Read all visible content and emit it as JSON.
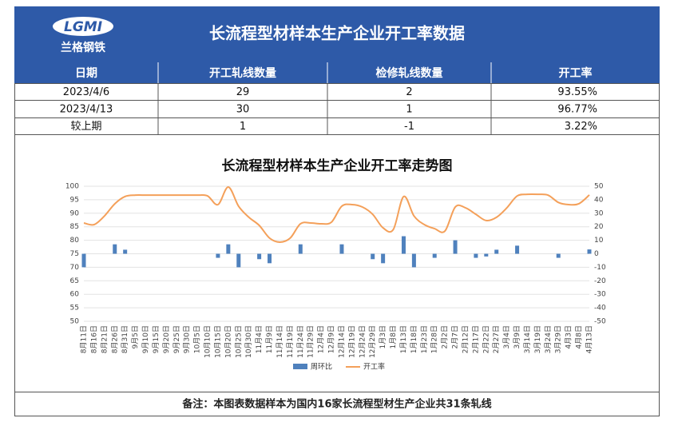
{
  "header": {
    "logo_text": "LGMI",
    "logo_subtext": "兰格钢铁",
    "title": "长流程型材样本生产企业开工率数据"
  },
  "table": {
    "columns": [
      "日期",
      "开工轧线数量",
      "检修轧线数量",
      "开工率"
    ],
    "rows": [
      [
        "2023/4/6",
        "29",
        "2",
        "93.55%"
      ],
      [
        "2023/4/13",
        "30",
        "1",
        "96.77%"
      ],
      [
        "较上期",
        "1",
        "-1",
        "3.22%"
      ]
    ]
  },
  "chart_data": {
    "type": "bar-line",
    "title": "长流程型材样本生产企业开工率走势图",
    "categories": [
      "8月11日",
      "8月16日",
      "8月21日",
      "8月26日",
      "8月31日",
      "9月5日",
      "9月10日",
      "9月15日",
      "9月20日",
      "9月25日",
      "9月30日",
      "10月5日",
      "10月10日",
      "10月15日",
      "10月20日",
      "10月25日",
      "10月30日",
      "11月4日",
      "11月9日",
      "11月14日",
      "11月19日",
      "11月24日",
      "11月29日",
      "12月4日",
      "12月9日",
      "12月14日",
      "12月19日",
      "12月24日",
      "12月29日",
      "1月3日",
      "1月8日",
      "1月13日",
      "1月18日",
      "1月23日",
      "1月28日",
      "2月2日",
      "2月7日",
      "2月12日",
      "2月17日",
      "2月22日",
      "2月27日",
      "3月4日",
      "3月9日",
      "3月14日",
      "3月19日",
      "3月24日",
      "3月29日",
      "4月3日",
      "4月8日",
      "4月13日"
    ],
    "series": [
      {
        "name": "周环比",
        "type": "bar",
        "axis": "y2",
        "color": "#4f81bd",
        "values": [
          -10,
          null,
          null,
          7,
          3,
          null,
          null,
          null,
          null,
          null,
          null,
          null,
          null,
          -3,
          7,
          -10,
          null,
          -4,
          -7,
          null,
          null,
          7,
          null,
          null,
          null,
          7,
          null,
          null,
          -4,
          -7,
          null,
          13,
          -10,
          null,
          -3,
          null,
          10,
          null,
          -3,
          -2,
          3,
          null,
          6,
          null,
          null,
          null,
          -3,
          null,
          null,
          3.22
        ]
      },
      {
        "name": "开工率",
        "type": "line",
        "color": "#f4a05a",
        "values": [
          86.4,
          85.8,
          89,
          93.5,
          96.2,
          96.7,
          96.7,
          96.7,
          96.7,
          96.7,
          96.7,
          96.7,
          96.4,
          93.2,
          99.7,
          92.6,
          88.5,
          85.5,
          80.8,
          79.3,
          80.8,
          86.1,
          86.4,
          86.1,
          86.7,
          92.6,
          93.2,
          92.3,
          89.6,
          84.6,
          84,
          96.2,
          89,
          85.8,
          84.3,
          83.4,
          92.3,
          92,
          89.6,
          87.3,
          88.5,
          92,
          96.4,
          97,
          97,
          96.7,
          94,
          93.2,
          93.55,
          96.77
        ]
      }
    ],
    "ylim": [
      50,
      100
    ],
    "yticks": [
      50,
      55,
      60,
      65,
      70,
      75,
      80,
      85,
      90,
      95,
      100
    ],
    "y2lim": [
      -50,
      50
    ],
    "y2ticks": [
      -50,
      -40,
      -30,
      -20,
      -10,
      0,
      10,
      20,
      30,
      40,
      50
    ],
    "grid": true
  },
  "note": "备注：本图表数据样本为国内16家长流程型材生产企业共31条轧线"
}
